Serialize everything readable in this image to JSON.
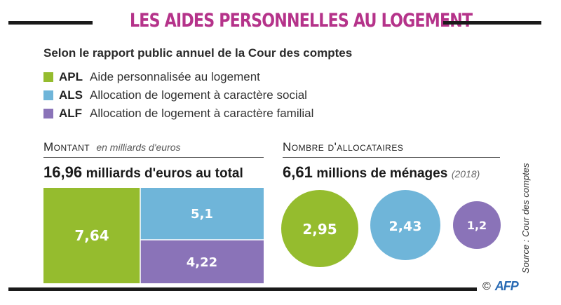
{
  "title": "LES AIDES PERSONNELLES AU LOGEMENT",
  "subtitle": "Selon le rapport public annuel de la Cour des comptes",
  "legend": [
    {
      "code": "APL",
      "label": "Aide personnalisée au logement",
      "color": "#95bc2e"
    },
    {
      "code": "ALS",
      "label": "Allocation de logement à caractère social",
      "color": "#6fb5d9"
    },
    {
      "code": "ALF",
      "label": "Allocation de logement à caractère familial",
      "color": "#8a73b8"
    }
  ],
  "montant": {
    "heading": "Montant",
    "note": "en milliards d'euros",
    "total_value": "16,96",
    "total_text": "milliards d'euros au total"
  },
  "allocataires": {
    "heading": "Nombre d'allocataires",
    "total_value": "6,61",
    "total_text": "millions de ménages",
    "note": "(2018)"
  },
  "source": "Source : Cour des comptes",
  "copyright": "©",
  "agency": "AFP",
  "chart_data": [
    {
      "type": "treemap",
      "unit": "milliards d'euros",
      "categories": [
        "APL",
        "ALS",
        "ALF"
      ],
      "values": [
        7.64,
        5.1,
        4.22
      ],
      "labels": [
        "7,64",
        "5,1",
        "4,22"
      ],
      "colors": [
        "#95bc2e",
        "#6fb5d9",
        "#8a73b8"
      ]
    },
    {
      "type": "bubble",
      "unit": "millions de ménages",
      "categories": [
        "APL",
        "ALS",
        "ALF"
      ],
      "values": [
        2.95,
        2.43,
        1.2
      ],
      "labels": [
        "2,95",
        "2,43",
        "1,2"
      ],
      "colors": [
        "#95bc2e",
        "#6fb5d9",
        "#8a73b8"
      ]
    }
  ]
}
